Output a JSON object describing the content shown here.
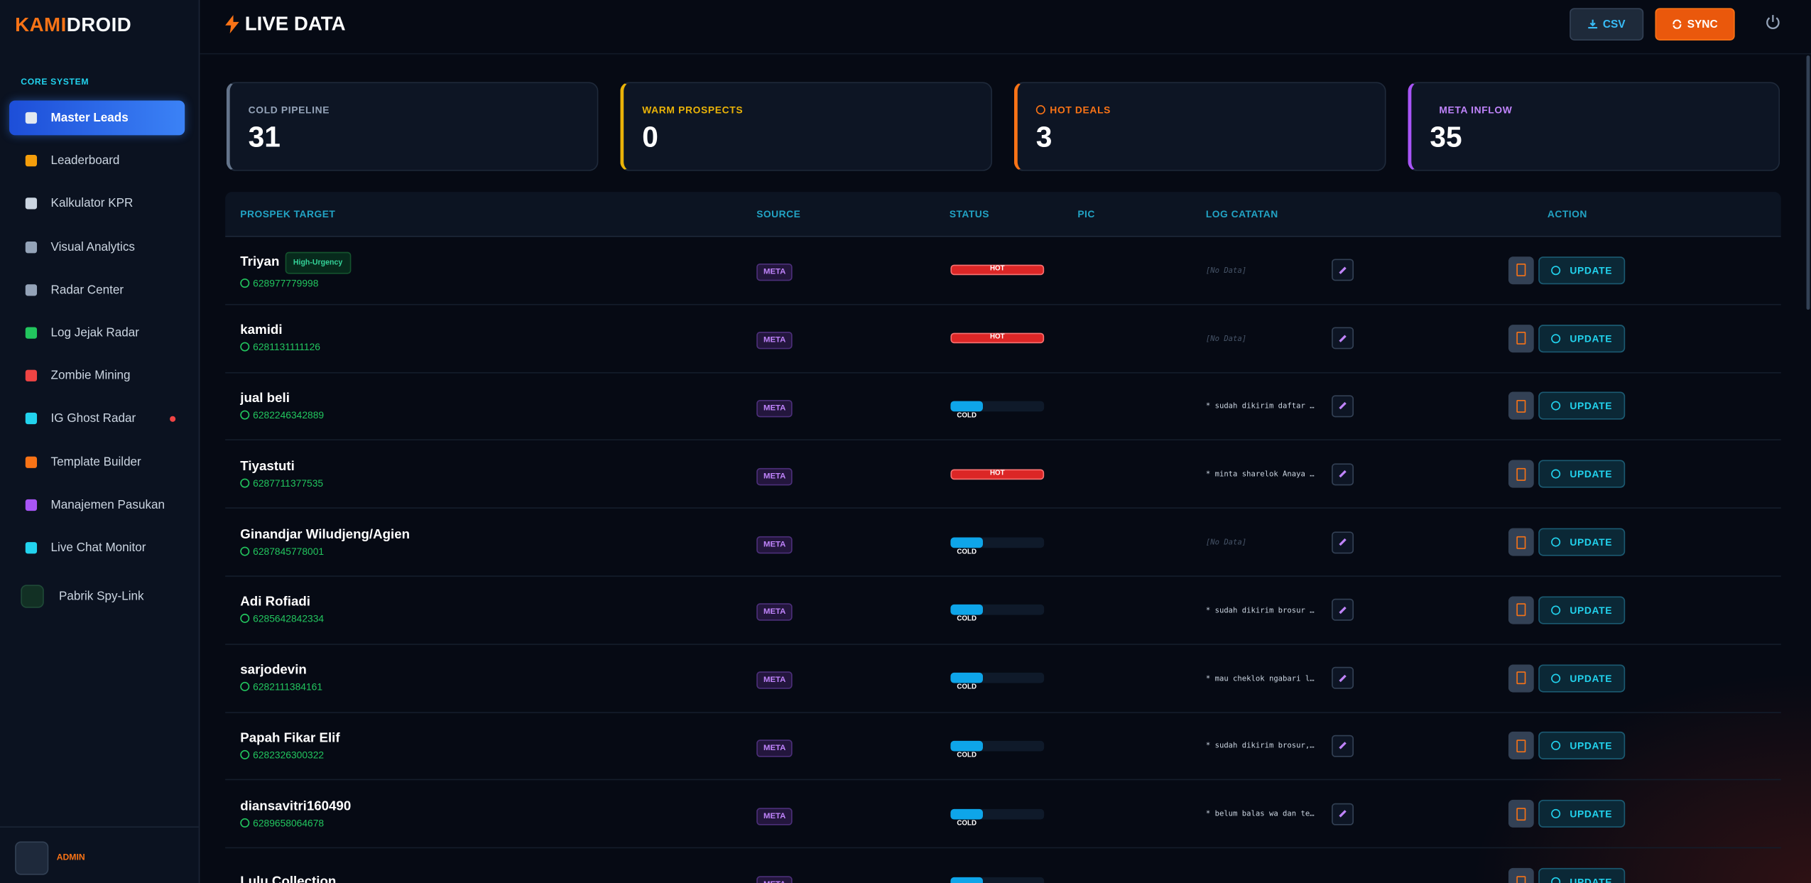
{
  "sidebar": {
    "brand": {
      "primary": "KAMI",
      "accent": "DROID"
    },
    "section": "CORE SYSTEM",
    "nav": [
      "Master Leads",
      "Leaderboard",
      "Kalkulator KPR",
      "Visual Analytics",
      "Radar Center",
      "Log Jejak Radar",
      "Zombie Mining",
      "IG Ghost Radar",
      "Template Builder",
      "Manajemen Pasukan",
      "Live Chat Monitor",
      "Pabrik Spy-Link"
    ],
    "user": "ADMIN"
  },
  "header": {
    "title": "LIVE DATA",
    "buttons": [
      "CSV",
      "SYNC"
    ]
  },
  "stats": [
    {
      "label": "COLD PIPELINE",
      "value": 31
    },
    {
      "label": "WARM PROSPECTS",
      "value": 0
    },
    {
      "label": "HOT DEALS",
      "value": 3
    },
    {
      "label": "META INFLOW",
      "value": 35
    }
  ],
  "table": {
    "columns": [
      "PROSPEK TARGET",
      "SOURCE",
      "STATUS",
      "PIC",
      "LOG CATATAN",
      "ACTION"
    ],
    "rows": [
      {
        "name": "Triyan",
        "badge": "High-Urgency",
        "phone": "628977779998",
        "source": "META",
        "status": "HOT",
        "log": "[No Data]",
        "action": "UPDATE"
      },
      {
        "name": "kamidi",
        "phone": "6281131111126",
        "source": "META",
        "status": "HOT",
        "log": "[No Data]",
        "action": "UPDATE"
      },
      {
        "name": "jual beli",
        "phone": "6282246342889",
        "source": "META",
        "status": "COLD",
        "log": "* sudah dikirim daftar …",
        "action": "UPDATE"
      },
      {
        "name": "Tiyastuti",
        "phone": "6287711377535",
        "source": "META",
        "status": "HOT",
        "log": "* minta sharelok Anaya …",
        "action": "UPDATE"
      },
      {
        "name": "Ginandjar Wiludjeng/Agien",
        "phone": "6287845778001",
        "source": "META",
        "status": "COLD",
        "log": "[No Data]",
        "action": "UPDATE"
      },
      {
        "name": "Adi Rofiadi",
        "phone": "6285642842334",
        "source": "META",
        "status": "COLD",
        "log": "* sudah dikirim brosur …",
        "action": "UPDATE"
      },
      {
        "name": "sarjodevin",
        "phone": "6282111384161",
        "source": "META",
        "status": "COLD",
        "log": "* mau cheklok ngabari l…",
        "action": "UPDATE"
      },
      {
        "name": "Papah Fikar Elif",
        "phone": "6282326300322",
        "source": "META",
        "status": "COLD",
        "log": "* sudah dikirim brosur,…",
        "action": "UPDATE"
      },
      {
        "name": "diansavitri160490",
        "phone": "6289658064678",
        "source": "META",
        "status": "COLD",
        "log": "* belum balas wa dan te…",
        "action": "UPDATE"
      },
      {
        "name": "Lulu Collection",
        "source": "META",
        "status": "COLD",
        "action": "UPDATE"
      }
    ]
  }
}
